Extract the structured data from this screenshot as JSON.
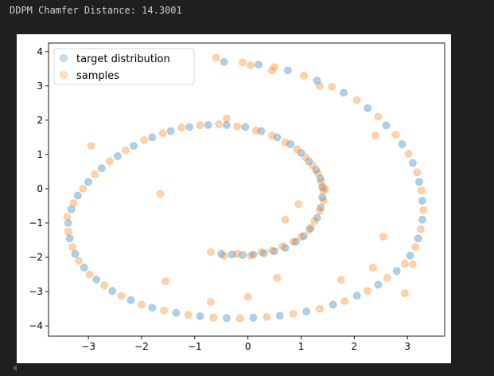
{
  "output": {
    "header_text": "DDPM Chamfer Distance: 14.3001"
  },
  "chart_data": {
    "type": "scatter",
    "title": "",
    "xlabel": "",
    "ylabel": "",
    "xlim": [
      -3.75,
      3.7
    ],
    "ylim": [
      -4.3,
      4.25
    ],
    "xticks": [
      -3,
      -2,
      -1,
      0,
      1,
      2,
      3
    ],
    "yticks": [
      -4,
      -3,
      -2,
      -1,
      0,
      1,
      2,
      3,
      4
    ],
    "grid": false,
    "legend_position": "top-left",
    "series": [
      {
        "name": "target distribution",
        "color": "#1f77b4",
        "alpha": 0.1,
        "points": [
          [
            -0.5,
            -1.9
          ],
          [
            -0.3,
            -1.92
          ],
          [
            -0.1,
            -1.93
          ],
          [
            0.1,
            -1.92
          ],
          [
            0.3,
            -1.88
          ],
          [
            0.5,
            -1.82
          ],
          [
            0.7,
            -1.72
          ],
          [
            0.9,
            -1.55
          ],
          [
            1.05,
            -1.38
          ],
          [
            1.18,
            -1.15
          ],
          [
            1.3,
            -0.85
          ],
          [
            1.37,
            -0.55
          ],
          [
            1.4,
            -0.25
          ],
          [
            1.4,
            0.05
          ],
          [
            1.36,
            0.3
          ],
          [
            1.28,
            0.55
          ],
          [
            1.15,
            0.8
          ],
          [
            1.0,
            1.05
          ],
          [
            0.8,
            1.3
          ],
          [
            0.55,
            1.5
          ],
          [
            0.25,
            1.68
          ],
          [
            -0.05,
            1.8
          ],
          [
            -0.4,
            1.86
          ],
          [
            -0.75,
            1.86
          ],
          [
            -1.1,
            1.8
          ],
          [
            -1.45,
            1.68
          ],
          [
            -1.8,
            1.5
          ],
          [
            -2.15,
            1.25
          ],
          [
            -2.45,
            0.95
          ],
          [
            -2.75,
            0.6
          ],
          [
            -3.0,
            0.2
          ],
          [
            -3.2,
            -0.2
          ],
          [
            -3.32,
            -0.6
          ],
          [
            -3.38,
            -1.0
          ],
          [
            -3.35,
            -1.45
          ],
          [
            -3.25,
            -1.9
          ],
          [
            -3.08,
            -2.3
          ],
          [
            -2.85,
            -2.65
          ],
          [
            -2.55,
            -2.98
          ],
          [
            -2.2,
            -3.25
          ],
          [
            -1.8,
            -3.47
          ],
          [
            -1.35,
            -3.62
          ],
          [
            -0.9,
            -3.72
          ],
          [
            -0.4,
            -3.77
          ],
          [
            0.1,
            -3.76
          ],
          [
            0.6,
            -3.7
          ],
          [
            1.1,
            -3.58
          ],
          [
            1.6,
            -3.38
          ],
          [
            2.05,
            -3.12
          ],
          [
            2.45,
            -2.8
          ],
          [
            2.8,
            -2.4
          ],
          [
            3.05,
            -1.95
          ],
          [
            3.2,
            -1.45
          ],
          [
            3.28,
            -0.9
          ],
          [
            3.28,
            -0.35
          ],
          [
            3.22,
            0.2
          ],
          [
            3.1,
            0.75
          ],
          [
            2.9,
            1.3
          ],
          [
            2.6,
            1.85
          ],
          [
            2.25,
            2.35
          ],
          [
            1.8,
            2.8
          ],
          [
            1.3,
            3.15
          ],
          [
            0.75,
            3.45
          ],
          [
            0.2,
            3.62
          ],
          [
            -0.45,
            3.7
          ]
        ]
      },
      {
        "name": "samples",
        "color": "#ff7f0e",
        "alpha": 0.1,
        "points": [
          [
            -0.7,
            -1.85
          ],
          [
            -0.45,
            -1.95
          ],
          [
            -0.2,
            -1.9
          ],
          [
            0.05,
            -1.95
          ],
          [
            0.25,
            -1.85
          ],
          [
            0.45,
            -1.8
          ],
          [
            0.65,
            -1.68
          ],
          [
            0.85,
            -1.55
          ],
          [
            1.0,
            -1.4
          ],
          [
            1.15,
            -1.2
          ],
          [
            1.25,
            -0.95
          ],
          [
            1.35,
            -0.65
          ],
          [
            1.42,
            -0.35
          ],
          [
            1.42,
            -0.05
          ],
          [
            1.38,
            0.2
          ],
          [
            1.32,
            0.45
          ],
          [
            1.22,
            0.68
          ],
          [
            1.08,
            0.92
          ],
          [
            0.92,
            1.15
          ],
          [
            0.7,
            1.35
          ],
          [
            0.45,
            1.55
          ],
          [
            0.15,
            1.7
          ],
          [
            -0.2,
            1.82
          ],
          [
            -0.55,
            1.88
          ],
          [
            -0.9,
            1.85
          ],
          [
            -1.25,
            1.78
          ],
          [
            -1.6,
            1.62
          ],
          [
            -1.95,
            1.42
          ],
          [
            -2.3,
            1.12
          ],
          [
            -2.6,
            0.8
          ],
          [
            -2.88,
            0.42
          ],
          [
            -3.1,
            0.0
          ],
          [
            -3.28,
            -0.42
          ],
          [
            -3.4,
            -0.82
          ],
          [
            -3.38,
            -1.25
          ],
          [
            -3.3,
            -1.7
          ],
          [
            -3.18,
            -2.1
          ],
          [
            -2.98,
            -2.5
          ],
          [
            -2.7,
            -2.82
          ],
          [
            -2.38,
            -3.12
          ],
          [
            -2.0,
            -3.38
          ],
          [
            -1.58,
            -3.55
          ],
          [
            -1.12,
            -3.68
          ],
          [
            -0.65,
            -3.76
          ],
          [
            -0.15,
            -3.78
          ],
          [
            0.35,
            -3.74
          ],
          [
            0.85,
            -3.65
          ],
          [
            1.35,
            -3.5
          ],
          [
            1.82,
            -3.28
          ],
          [
            2.25,
            -2.98
          ],
          [
            2.62,
            -2.6
          ],
          [
            2.95,
            -2.18
          ],
          [
            3.15,
            -1.7
          ],
          [
            3.25,
            -1.18
          ],
          [
            3.3,
            -0.62
          ],
          [
            3.26,
            -0.05
          ],
          [
            3.18,
            0.48
          ],
          [
            3.02,
            1.02
          ],
          [
            2.78,
            1.58
          ],
          [
            2.45,
            2.1
          ],
          [
            2.05,
            2.58
          ],
          [
            1.58,
            2.98
          ],
          [
            1.05,
            3.3
          ],
          [
            0.5,
            3.55
          ],
          [
            -0.1,
            3.68
          ],
          [
            -0.6,
            3.82
          ],
          [
            0.05,
            3.6
          ],
          [
            0.45,
            3.45
          ],
          [
            1.35,
            3.0
          ],
          [
            2.4,
            1.55
          ],
          [
            2.55,
            -1.4
          ],
          [
            2.35,
            -2.3
          ],
          [
            1.45,
            0.0
          ],
          [
            0.7,
            -0.9
          ],
          [
            0.55,
            -2.6
          ],
          [
            0.0,
            -3.15
          ],
          [
            -0.7,
            -3.3
          ],
          [
            -1.55,
            -2.7
          ],
          [
            -1.65,
            -0.15
          ],
          [
            -0.4,
            2.05
          ],
          [
            -2.95,
            1.25
          ],
          [
            0.95,
            -0.45
          ],
          [
            1.75,
            -2.65
          ],
          [
            2.95,
            -3.05
          ],
          [
            3.1,
            -2.2
          ]
        ]
      }
    ]
  }
}
